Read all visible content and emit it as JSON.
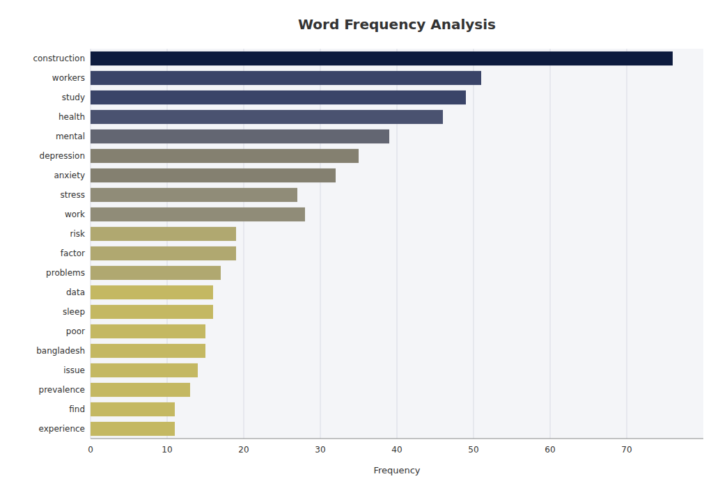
{
  "chart_data": {
    "type": "bar",
    "orientation": "horizontal",
    "title": "Word Frequency Analysis",
    "xlabel": "Frequency",
    "categories": [
      "construction",
      "workers",
      "study",
      "health",
      "mental",
      "depression",
      "anxiety",
      "stress",
      "work",
      "risk",
      "factor",
      "problems",
      "data",
      "sleep",
      "poor",
      "bangladesh",
      "issue",
      "prevalence",
      "find",
      "experience"
    ],
    "values": [
      76,
      51,
      49,
      46,
      39,
      35,
      32,
      27,
      28,
      19,
      19,
      17,
      16,
      16,
      15,
      15,
      14,
      13,
      11,
      11
    ],
    "colors": [
      "#0d1b3e",
      "#3a4468",
      "#3a4468",
      "#4a5270",
      "#636672",
      "#848070",
      "#848070",
      "#908c78",
      "#908c78",
      "#b0a870",
      "#b0a870",
      "#b0a870",
      "#c4b862",
      "#c4b862",
      "#c4b862",
      "#c4b862",
      "#c4b862",
      "#c4b862",
      "#c4b862",
      "#c4b862"
    ],
    "xlim": [
      0,
      80
    ],
    "xticks": [
      0,
      10,
      20,
      30,
      40,
      50,
      60,
      70
    ],
    "grid": true
  }
}
